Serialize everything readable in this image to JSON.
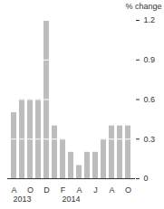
{
  "chart_data": {
    "type": "bar",
    "y_label": "% change",
    "categories": [
      "A",
      null,
      "O",
      null,
      "D",
      null,
      "F",
      null,
      "A",
      null,
      "J",
      null,
      "A",
      null,
      "O"
    ],
    "values": [
      0.5,
      0.6,
      0.6,
      0.6,
      1.2,
      0.4,
      0.3,
      0.2,
      0.1,
      0.2,
      0.2,
      0.3,
      0.4,
      0.4,
      0.4
    ],
    "color": "#bdbdbd",
    "ylim": [
      0,
      1.2
    ],
    "yticks": [
      0,
      0.3,
      0.6,
      0.9,
      1.2
    ],
    "grid": true,
    "annotations": [
      "2013",
      "2014"
    ]
  }
}
